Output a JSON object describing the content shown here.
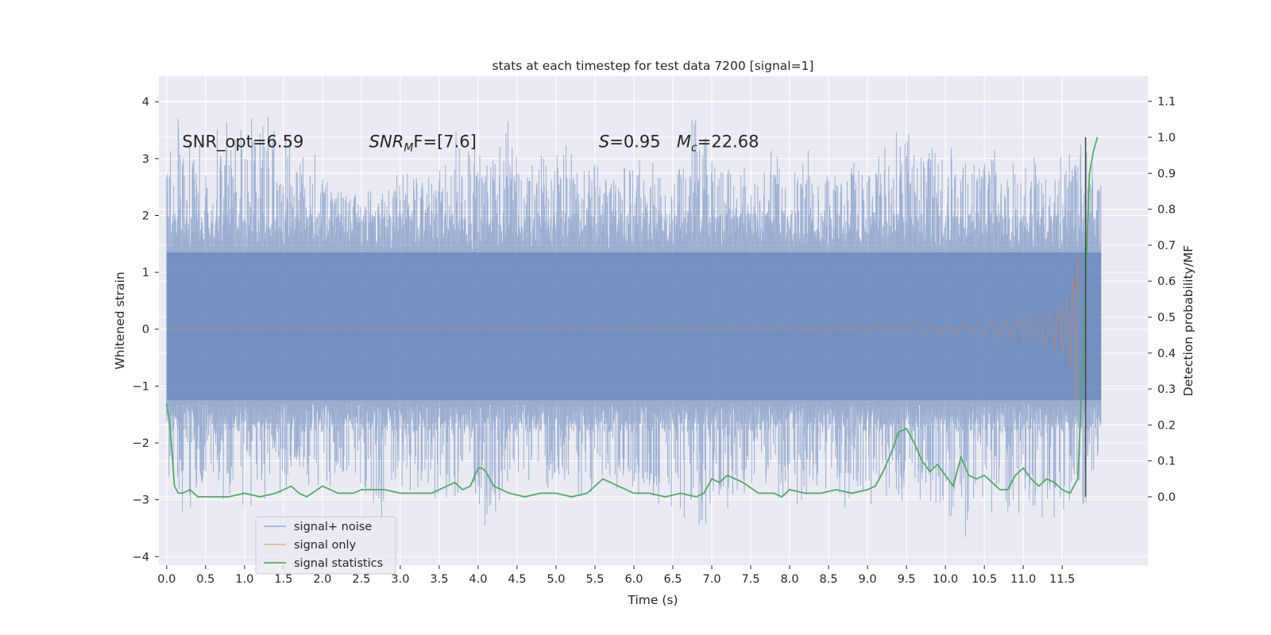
{
  "chart_data": {
    "type": "line",
    "title": "stats at each timestep for test data 7200 [signal=1]",
    "xlabel": "Time (s)",
    "ylabel_left": "Whitened strain",
    "ylabel_right": "Detection probability/MF",
    "xlim": [
      -0.1,
      12.6
    ],
    "ylim_left": [
      -4.15,
      4.45
    ],
    "ylim_right": [
      -0.19,
      1.17
    ],
    "x_ticks": [
      0.0,
      0.5,
      1.0,
      1.5,
      2.0,
      2.5,
      3.0,
      3.5,
      4.0,
      4.5,
      5.0,
      5.5,
      6.0,
      6.5,
      7.0,
      7.5,
      8.0,
      8.5,
      9.0,
      9.5,
      10.0,
      10.5,
      11.0,
      11.5
    ],
    "x_tick_labels": [
      "0.0",
      "0.5",
      "1.0",
      "1.5",
      "2.0",
      "2.5",
      "3.0",
      "3.5",
      "4.0",
      "4.5",
      "5.0",
      "5.5",
      "6.0",
      "6.5",
      "7.0",
      "7.5",
      "8.0",
      "8.5",
      "9.0",
      "9.5",
      "10.0",
      "10.5",
      "11.0",
      "11.5"
    ],
    "y_left_ticks": [
      4,
      3,
      2,
      1,
      0,
      -1,
      -2,
      -3,
      -4
    ],
    "y_left_tick_labels": [
      "4",
      "3",
      "2",
      "1",
      "0",
      "−1",
      "−2",
      "−3",
      "−4"
    ],
    "y_right_ticks": [
      1.1,
      1.0,
      0.9,
      0.8,
      0.7,
      0.6,
      0.5,
      0.4,
      0.3,
      0.2,
      0.1,
      0.0
    ],
    "y_right_tick_labels": [
      "1.1",
      "1.0",
      "0.9",
      "0.8",
      "0.7",
      "0.6",
      "0.5",
      "0.4",
      "0.3",
      "0.2",
      "0.1",
      "0.0"
    ],
    "grid": true,
    "legend_position": "lower-left",
    "series": [
      {
        "name": "signal+ noise",
        "axis": "left",
        "color": "#4c72b0",
        "style": "dense noisy strain trace, t = 0.0 to 12.0 s",
        "envelope_upper": [
          [
            0.0,
            3.1
          ],
          [
            0.1,
            3.8
          ],
          [
            0.5,
            3.3
          ],
          [
            1.0,
            4.1
          ],
          [
            1.5,
            3.6
          ],
          [
            2.0,
            3.0
          ],
          [
            2.5,
            2.4
          ],
          [
            3.0,
            2.8
          ],
          [
            3.5,
            2.9
          ],
          [
            3.85,
            3.9
          ],
          [
            4.0,
            3.1
          ],
          [
            4.35,
            3.9
          ],
          [
            4.5,
            3.0
          ],
          [
            5.0,
            3.4
          ],
          [
            5.5,
            3.0
          ],
          [
            6.0,
            3.3
          ],
          [
            6.5,
            2.8
          ],
          [
            6.75,
            3.8
          ],
          [
            7.0,
            3.2
          ],
          [
            7.5,
            3.0
          ],
          [
            8.0,
            3.3
          ],
          [
            8.5,
            3.0
          ],
          [
            9.0,
            3.1
          ],
          [
            9.5,
            3.6
          ],
          [
            10.0,
            3.3
          ],
          [
            10.5,
            3.2
          ],
          [
            11.0,
            3.0
          ],
          [
            11.5,
            3.1
          ],
          [
            11.65,
            3.3
          ],
          [
            11.85,
            3.3
          ],
          [
            12.0,
            2.6
          ]
        ],
        "envelope_lower": [
          [
            0.0,
            -2.4
          ],
          [
            0.1,
            -3.4
          ],
          [
            0.5,
            -3.0
          ],
          [
            1.0,
            -3.2
          ],
          [
            1.5,
            -2.9
          ],
          [
            2.0,
            -2.8
          ],
          [
            2.5,
            -3.1
          ],
          [
            2.75,
            -3.6
          ],
          [
            3.0,
            -2.8
          ],
          [
            3.5,
            -3.0
          ],
          [
            4.0,
            -3.2
          ],
          [
            4.1,
            -3.65
          ],
          [
            4.5,
            -3.2
          ],
          [
            5.0,
            -2.9
          ],
          [
            5.5,
            -3.0
          ],
          [
            6.0,
            -3.0
          ],
          [
            6.5,
            -3.3
          ],
          [
            6.65,
            -3.75
          ],
          [
            7.0,
            -3.5
          ],
          [
            7.5,
            -3.0
          ],
          [
            8.0,
            -3.2
          ],
          [
            8.5,
            -3.1
          ],
          [
            9.0,
            -3.2
          ],
          [
            9.5,
            -3.1
          ],
          [
            10.0,
            -3.2
          ],
          [
            10.25,
            -3.75
          ],
          [
            10.5,
            -3.2
          ],
          [
            11.0,
            -3.4
          ],
          [
            11.5,
            -3.3
          ],
          [
            11.8,
            -3.3
          ],
          [
            12.0,
            -2.5
          ]
        ]
      },
      {
        "name": "signal only",
        "axis": "left",
        "color": "#dd8452",
        "style": "inspiral chirp, amplitude growing toward merger",
        "amplitude_envelope": [
          [
            0.0,
            0.0
          ],
          [
            7.5,
            0.02
          ],
          [
            8.0,
            0.03
          ],
          [
            9.0,
            0.05
          ],
          [
            10.0,
            0.08
          ],
          [
            10.5,
            0.11
          ],
          [
            11.0,
            0.17
          ],
          [
            11.3,
            0.25
          ],
          [
            11.5,
            0.4
          ],
          [
            11.6,
            0.65
          ],
          [
            11.65,
            1.0
          ],
          [
            11.7,
            1.5
          ],
          [
            11.72,
            0.0
          ]
        ]
      },
      {
        "name": "signal statistics",
        "axis": "right",
        "color": "#55a868",
        "x": [
          0.0,
          0.05,
          0.1,
          0.15,
          0.2,
          0.3,
          0.4,
          0.5,
          0.6,
          0.8,
          1.0,
          1.2,
          1.4,
          1.5,
          1.6,
          1.7,
          1.8,
          2.0,
          2.2,
          2.4,
          2.5,
          2.6,
          2.8,
          3.0,
          3.2,
          3.4,
          3.5,
          3.7,
          3.8,
          3.9,
          4.0,
          4.05,
          4.1,
          4.2,
          4.4,
          4.6,
          4.8,
          5.0,
          5.2,
          5.4,
          5.5,
          5.6,
          5.7,
          5.8,
          6.0,
          6.2,
          6.4,
          6.6,
          6.8,
          6.9,
          7.0,
          7.1,
          7.2,
          7.3,
          7.4,
          7.6,
          7.8,
          7.9,
          8.0,
          8.2,
          8.4,
          8.6,
          8.8,
          9.0,
          9.1,
          9.2,
          9.3,
          9.4,
          9.5,
          9.6,
          9.7,
          9.8,
          9.9,
          10.0,
          10.1,
          10.2,
          10.3,
          10.4,
          10.5,
          10.6,
          10.7,
          10.8,
          10.9,
          11.0,
          11.1,
          11.2,
          11.3,
          11.4,
          11.5,
          11.6,
          11.7,
          11.75,
          11.8,
          11.85,
          11.9,
          11.95
        ],
        "values": [
          0.26,
          0.18,
          0.03,
          0.01,
          0.01,
          0.02,
          0.0,
          0.0,
          0.0,
          0.0,
          0.01,
          0.0,
          0.01,
          0.02,
          0.03,
          0.01,
          0.0,
          0.03,
          0.01,
          0.01,
          0.02,
          0.02,
          0.02,
          0.01,
          0.01,
          0.01,
          0.02,
          0.04,
          0.02,
          0.03,
          0.08,
          0.08,
          0.07,
          0.03,
          0.01,
          0.0,
          0.01,
          0.01,
          0.0,
          0.01,
          0.03,
          0.05,
          0.04,
          0.03,
          0.01,
          0.01,
          0.0,
          0.01,
          0.0,
          0.01,
          0.05,
          0.04,
          0.06,
          0.05,
          0.04,
          0.01,
          0.01,
          0.0,
          0.02,
          0.01,
          0.01,
          0.02,
          0.01,
          0.02,
          0.03,
          0.07,
          0.12,
          0.18,
          0.19,
          0.15,
          0.1,
          0.07,
          0.09,
          0.06,
          0.03,
          0.11,
          0.06,
          0.05,
          0.06,
          0.04,
          0.02,
          0.02,
          0.06,
          0.08,
          0.05,
          0.03,
          0.05,
          0.04,
          0.02,
          0.01,
          0.05,
          0.3,
          0.6,
          0.9,
          0.96,
          1.0
        ]
      }
    ],
    "vertical_line": {
      "x": 11.8,
      "color": "#444444"
    },
    "annotations": [
      {
        "text": "SNR_opt=6.59",
        "x": 0.2,
        "y": 3.3
      },
      {
        "text_main": "SNR",
        "text_sub": "M",
        "text_tail": "F=[7.6]",
        "x": 2.6,
        "y": 3.3
      },
      {
        "text_main": "S",
        "text_tail": "=0.95",
        "x": 5.55,
        "y": 3.3
      },
      {
        "text_main": "M",
        "text_sub": "c",
        "text_tail": "=22.68",
        "x": 6.55,
        "y": 3.3
      }
    ]
  }
}
